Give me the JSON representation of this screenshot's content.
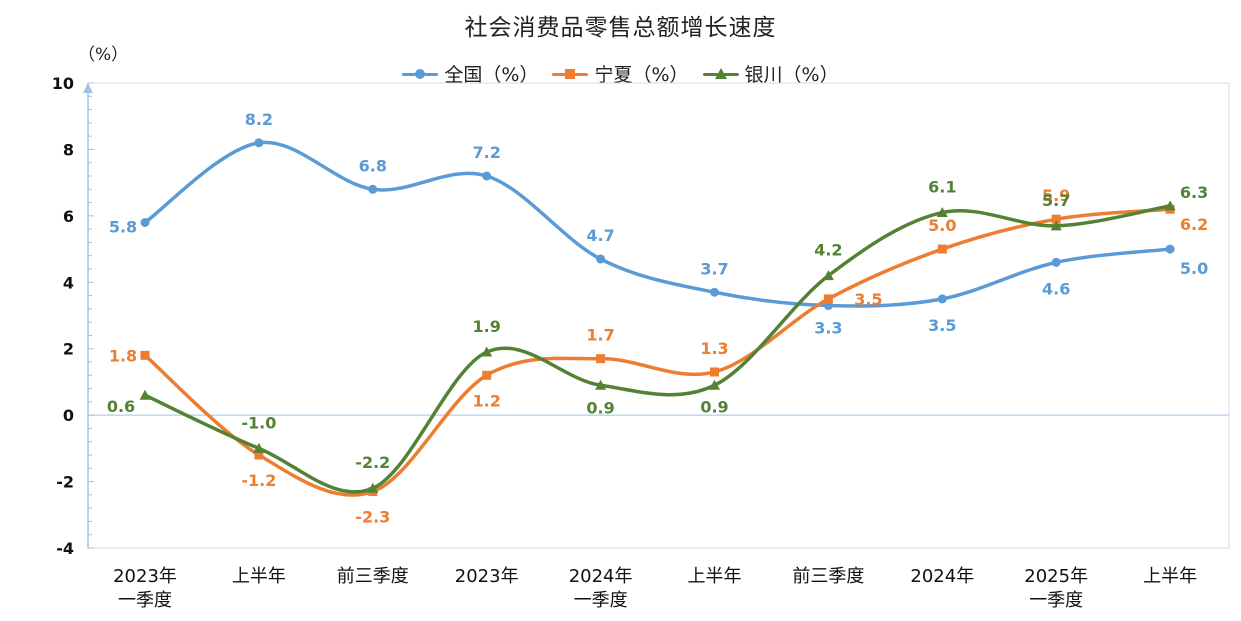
{
  "chart_data": {
    "type": "line",
    "title": "社会消费品零售总额增长速度",
    "ylabel": "（%）",
    "ylim": [
      -4,
      10
    ],
    "y_ticks": [
      "-4",
      "-2",
      "0",
      "2",
      "4",
      "6",
      "8",
      "10"
    ],
    "categories": [
      [
        "2023年",
        "一季度"
      ],
      [
        "上半年"
      ],
      [
        "前三季度"
      ],
      [
        "2023年"
      ],
      [
        "2024年",
        "一季度"
      ],
      [
        "上半年"
      ],
      [
        "前三季度"
      ],
      [
        "2024年"
      ],
      [
        "2025年",
        "一季度"
      ],
      [
        "上半年"
      ]
    ],
    "series": [
      {
        "name": "全国（%）",
        "color": "#5b9bd5",
        "marker": "circle",
        "values": [
          5.8,
          8.2,
          6.8,
          7.2,
          4.7,
          3.7,
          3.3,
          3.5,
          4.6,
          5.0
        ],
        "labels": [
          "5.8",
          "8.2",
          "6.8",
          "7.2",
          "4.7",
          "3.7",
          "3.3",
          "3.5",
          "4.6",
          "5.0"
        ]
      },
      {
        "name": "宁夏（%）",
        "color": "#ed7d31",
        "marker": "square",
        "values": [
          1.8,
          -1.2,
          -2.3,
          1.2,
          1.7,
          1.3,
          3.5,
          5.0,
          5.9,
          6.2
        ],
        "labels": [
          "1.8",
          "-1.2",
          "-2.3",
          "1.2",
          "1.7",
          "1.3",
          "3.5",
          "5.0",
          "5.9",
          "6.2"
        ]
      },
      {
        "name": "银川（%）",
        "color": "#548235",
        "marker": "triangle",
        "values": [
          0.6,
          -1.0,
          -2.2,
          1.9,
          0.9,
          0.9,
          4.2,
          6.1,
          5.7,
          6.3
        ],
        "labels": [
          "0.6",
          "-1.0",
          "-2.2",
          "1.9",
          "0.9",
          "0.9",
          "4.2",
          "6.1",
          "5.7",
          "6.3"
        ]
      }
    ],
    "legend_position": "top",
    "grid": false
  }
}
